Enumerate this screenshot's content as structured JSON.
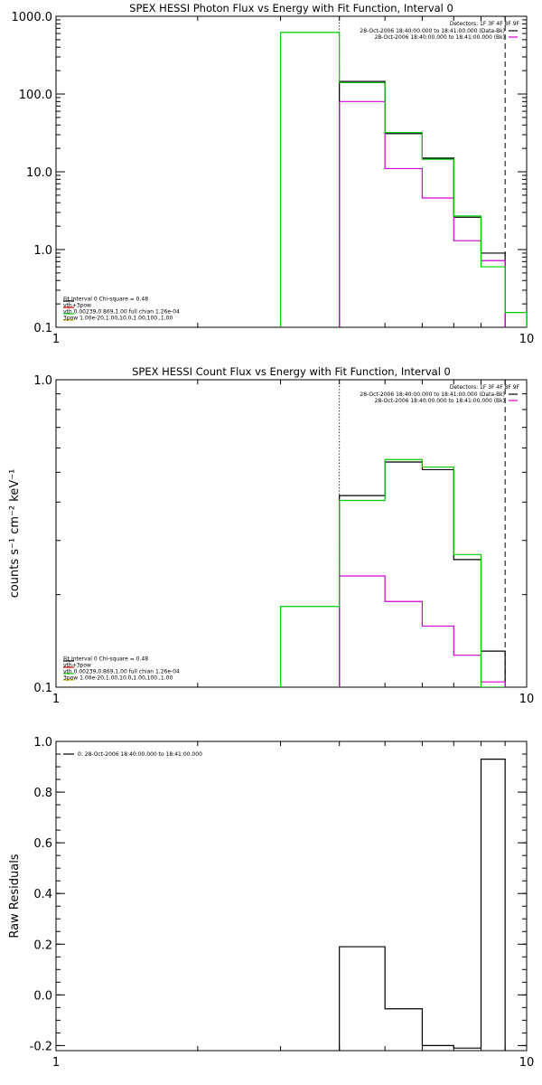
{
  "colors": {
    "black": "#000000",
    "green": "#00cc00",
    "magenta": "#d400d4",
    "red": "#e00000",
    "yellow": "#c8b400"
  },
  "chart_data": [
    {
      "type": "line",
      "title": "SPEX HESSI Photon Flux vs Energy with Fit Function, Interval 0",
      "xlabel": "",
      "ylabel": "",
      "xscale": "log",
      "yscale": "log",
      "xlim": [
        1,
        10
      ],
      "ylim": [
        0.1,
        1000
      ],
      "xticks": [
        {
          "v": 1,
          "label": "1"
        },
        {
          "v": 10,
          "label": "10"
        }
      ],
      "yticks": [
        {
          "v": 0.1,
          "label": "0.1"
        },
        {
          "v": 1,
          "label": "1.0"
        },
        {
          "v": 10,
          "label": "10.0"
        },
        {
          "v": 100,
          "label": "100.0"
        },
        {
          "v": 1000,
          "label": "1000.0"
        }
      ],
      "vlines": [
        {
          "x": 4,
          "style": "dotted"
        },
        {
          "x": 9,
          "style": "dashed"
        }
      ],
      "detectors_label": "Detectors: 1F 3F 4F 8F 9F",
      "legend_tr": [
        {
          "text": "28-Oct-2006 18:40:00.000 to 18:41:00.000 (Data-Bk)",
          "color": "black"
        },
        {
          "text": "28-Oct-2006 18:40:00.000 to 18:41:00.000 (Bk)",
          "color": "magenta"
        }
      ],
      "legend_bl": [
        {
          "text": "Fit Interval 0   Chi-square = 0.48",
          "color": "black"
        },
        {
          "text": "vth+3pow",
          "color": "red"
        },
        {
          "text": "vth 0.00239,0.869,1.00  full chian 1.26e-04",
          "color": "green"
        },
        {
          "text": "3pow 1.00e-20,1.00,10.0,1.00,100.,1.00",
          "color": "yellow"
        }
      ],
      "series": [
        {
          "color": "black",
          "edges": [
            4,
            5,
            6,
            7,
            8,
            9
          ],
          "values": [
            145,
            31,
            15,
            2.6,
            0.9
          ]
        },
        {
          "color": "magenta",
          "edges": [
            4,
            5,
            6,
            7,
            8,
            9
          ],
          "values": [
            80,
            11,
            4.6,
            1.3,
            0.72
          ]
        },
        {
          "color": "green",
          "edges": [
            3,
            4,
            5,
            6,
            7,
            8,
            9,
            10
          ],
          "values": [
            620,
            140,
            32,
            14.5,
            2.7,
            0.6,
            0.155
          ]
        }
      ]
    },
    {
      "type": "line",
      "title": "SPEX HESSI Count Flux vs Energy with Fit Function, Interval 0",
      "xlabel": "",
      "ylabel": "counts s⁻¹ cm⁻² keV⁻¹",
      "xscale": "log",
      "yscale": "log",
      "xlim": [
        1,
        10
      ],
      "ylim": [
        0.1,
        1.0
      ],
      "xticks": [
        {
          "v": 1,
          "label": "1"
        },
        {
          "v": 10,
          "label": "10"
        }
      ],
      "yticks": [
        {
          "v": 0.1,
          "label": "0.1"
        },
        {
          "v": 1,
          "label": "1.0"
        }
      ],
      "vlines": [
        {
          "x": 4,
          "style": "dotted"
        },
        {
          "x": 9,
          "style": "dashed"
        }
      ],
      "detectors_label": "Detectors: 1F 3F 4F 8F 9F",
      "legend_tr": [
        {
          "text": "28-Oct-2006 18:40:00.000 to 18:41:00.000 (Data-Bk)",
          "color": "black"
        },
        {
          "text": "28-Oct-2006 18:40:00.000 to 18:41:00.000 (Bk)",
          "color": "magenta"
        }
      ],
      "legend_bl": [
        {
          "text": "Fit Interval 0   Chi-square = 0.48",
          "color": "black"
        },
        {
          "text": "vth+3pow",
          "color": "red"
        },
        {
          "text": "vth 0.00239,0.869,1.00  full chian 1.26e-04",
          "color": "green"
        },
        {
          "text": "3pow 1.00e-20,1.00,10.0,1.00,100.,1.00",
          "color": "yellow"
        }
      ],
      "series": [
        {
          "color": "black",
          "edges": [
            4,
            5,
            6,
            7,
            8,
            9
          ],
          "values": [
            0.42,
            0.54,
            0.51,
            0.26,
            0.131
          ]
        },
        {
          "color": "magenta",
          "edges": [
            4,
            5,
            6,
            7,
            8,
            9
          ],
          "values": [
            0.23,
            0.19,
            0.158,
            0.127,
            0.104
          ]
        },
        {
          "color": "green",
          "edges": [
            3,
            4,
            5,
            6,
            7,
            8,
            9
          ],
          "values": [
            0.183,
            0.405,
            0.55,
            0.52,
            0.27,
            0.1
          ]
        }
      ]
    },
    {
      "type": "line",
      "title": "",
      "xlabel": "",
      "ylabel": "Raw Residuals",
      "xscale": "log",
      "yscale": "linear",
      "xlim": [
        1,
        10
      ],
      "ylim": [
        -0.22,
        1.0
      ],
      "xticks": [
        {
          "v": 1,
          "label": "1"
        },
        {
          "v": 10,
          "label": "10"
        }
      ],
      "yticks": [
        {
          "v": -0.2,
          "label": "-0.2"
        },
        {
          "v": 0,
          "label": "0.0"
        },
        {
          "v": 0.2,
          "label": "0.2"
        },
        {
          "v": 0.4,
          "label": "0.4"
        },
        {
          "v": 0.6,
          "label": "0.6"
        },
        {
          "v": 0.8,
          "label": "0.8"
        },
        {
          "v": 1.0,
          "label": "1.0"
        }
      ],
      "vlines": [],
      "detectors_label": "",
      "legend_tl": [
        {
          "text": "0: 28-Oct-2006 18:40:00.000 to 18:41:00.000",
          "color": "black"
        }
      ],
      "series": [
        {
          "color": "black",
          "edges": [
            4,
            5,
            6,
            7,
            8,
            9
          ],
          "values": [
            0.19,
            -0.055,
            -0.2,
            -0.21,
            0.93
          ]
        }
      ]
    }
  ]
}
